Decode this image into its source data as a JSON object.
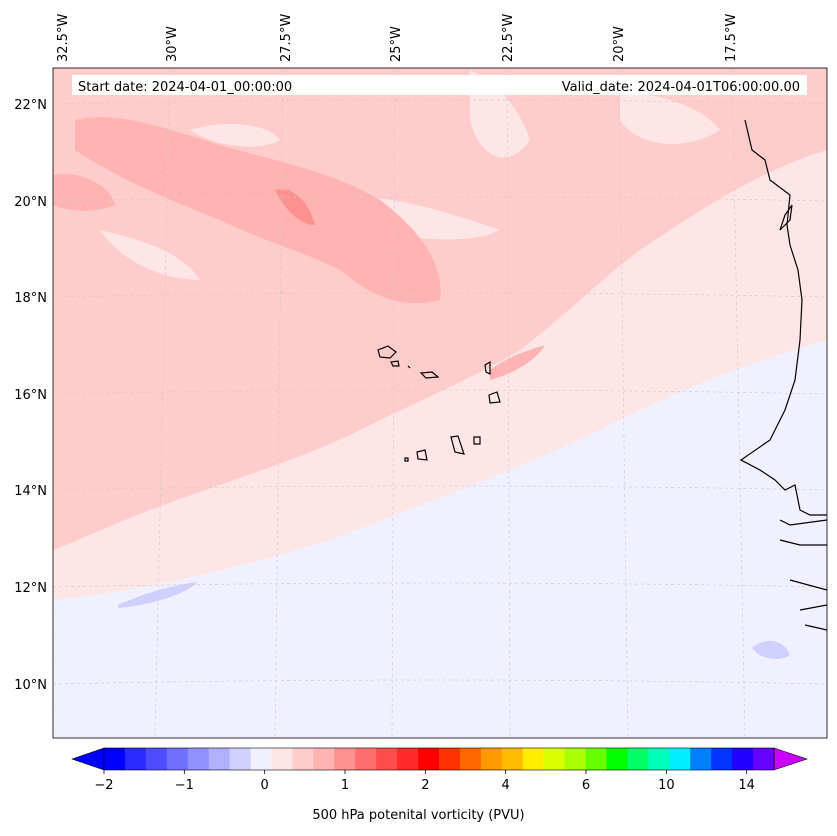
{
  "map": {
    "start_label": "Start date: 2024-04-01_00:00:00",
    "valid_label": "Valid_date: 2024-04-01T06:00:00.00",
    "lon_labels": [
      "32.5°W",
      "30°W",
      "27.5°W",
      "25°W",
      "22.5°W",
      "20°W",
      "17.5°W"
    ],
    "lat_labels": [
      "22°N",
      "20°N",
      "18°N",
      "16°N",
      "14°N",
      "12°N",
      "10°N"
    ],
    "lon_range": [
      -32.6,
      -14.8
    ],
    "lat_range": [
      8.9,
      22.8
    ]
  },
  "colorbar": {
    "label": "500 hPa potenital vorticity (PVU)",
    "tick_labels": [
      "−2",
      "−1",
      "0",
      "1",
      "2",
      "4",
      "6",
      "10",
      "14"
    ],
    "colors": [
      "#0000ff",
      "#2a2aff",
      "#4d4dff",
      "#7070ff",
      "#9090ff",
      "#b0b0ff",
      "#d0d0ff",
      "#f0f0ff",
      "#ffe6e6",
      "#ffcccc",
      "#ffb3b3",
      "#ff9090",
      "#ff6e6e",
      "#ff4d4d",
      "#ff2a2a",
      "#ff0000",
      "#ff3300",
      "#ff6600",
      "#ff9900",
      "#ffbb00",
      "#ffee00",
      "#d8ff00",
      "#aaff00",
      "#66ff00",
      "#00ff00",
      "#00ff66",
      "#00ffbb",
      "#00eeff",
      "#0080ff",
      "#0033ff",
      "#2200ff",
      "#6600ff"
    ],
    "under_color": "#0000ff",
    "over_color": "#cc00ff"
  }
}
